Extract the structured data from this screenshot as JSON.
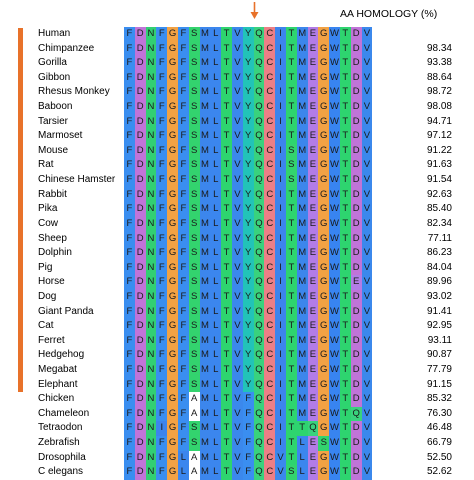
{
  "header": {
    "label": "AA HOMOLOGY  (%)"
  },
  "colors": {
    "F": "#3a8ef0",
    "D": "#c074d8",
    "N": "#32cf73",
    "G": "#f2a244",
    "S": "#33d36e",
    "M": "#3c86ec",
    "L": "#3b86ee",
    "T": "#2ed46f",
    "V": "#3b88ec",
    "Y": "#22c3b8",
    "Q": "#39d27d",
    "C": "#ec7f86",
    "I": "#3d84ec",
    "E": "#b27ce6",
    "W": "#3884f0",
    "A": "#ffffff",
    "P": "#f4e14a",
    "K": "#ff7a3c",
    "R": "#ff7a3c",
    "H": "#1fb9c0",
    "arrow": "#e8722a",
    "bar": "#e8722a"
  },
  "species": [
    {
      "name": "Human",
      "seq": "FDNFGFSMLTVYQCITMEGWTDV",
      "homology": ""
    },
    {
      "name": "Chimpanzee",
      "seq": "FDNFGFSMLTVYQCITMEGWTDV",
      "homology": "98.34"
    },
    {
      "name": "Gorilla",
      "seq": "FDNFGFSMLTVYQCITMEGWTDV",
      "homology": "93.38"
    },
    {
      "name": "Gibbon",
      "seq": "FDNFGFSMLTVYQCITMEGWTDV",
      "homology": "88.64"
    },
    {
      "name": "Rhesus Monkey",
      "seq": "FDNFGFSMLTVYQCITMEGWTDV",
      "homology": "98.72"
    },
    {
      "name": "Baboon",
      "seq": "FDNFGFSMLTVYQCITMEGWTDV",
      "homology": "98.08"
    },
    {
      "name": "Tarsier",
      "seq": "FDNFGFSMLTVYQCITMEGWTDV",
      "homology": "94.71"
    },
    {
      "name": "Marmoset",
      "seq": "FDNFGFSMLTVYQCITMEGWTDV",
      "homology": "97.12"
    },
    {
      "name": "Mouse",
      "seq": "FDNFGFSMLTVYQCISMEGWTDV",
      "homology": "91.22"
    },
    {
      "name": "Rat",
      "seq": "FDNFGFSMLTVYQCISMEGWTDV",
      "homology": "91.63"
    },
    {
      "name": "Chinese Hamster",
      "seq": "FDNFGFSMLTVYQCISMEGWTDV",
      "homology": "91.54"
    },
    {
      "name": "Rabbit",
      "seq": "FDNFGFSMLTVYQCITMEGWTDV",
      "homology": "92.63"
    },
    {
      "name": "Pika",
      "seq": "FDNFGFSMLTVYQCITMEGWTDV",
      "homology": "85.40"
    },
    {
      "name": "Cow",
      "seq": "FDNFGFSMLTVYQCITMEGWTDV",
      "homology": "82.34"
    },
    {
      "name": "Sheep",
      "seq": "FDNFGFSMLTVYQCITMEGWTDV",
      "homology": "77.11"
    },
    {
      "name": "Dolphin",
      "seq": "FDNFGFSMLTVYQCITMEGWTDV",
      "homology": "86.23"
    },
    {
      "name": "Pig",
      "seq": "FDNFGFSMLTVYQCITMEGWTDV",
      "homology": "84.04"
    },
    {
      "name": "Horse",
      "seq": "FDNFGFSMLTVYQCITMEGWTEV",
      "homology": "89.96"
    },
    {
      "name": "Dog",
      "seq": "FDNFGFSMLTVYQCITMEGWTDV",
      "homology": "93.02"
    },
    {
      "name": "Giant Panda",
      "seq": "FDNFGFSMLTVYQCITMEGWTDV",
      "homology": "91.41"
    },
    {
      "name": "Cat",
      "seq": "FDNFGFSMLTVYQCITMEGWTDV",
      "homology": "92.95"
    },
    {
      "name": "Ferret",
      "seq": "FDNFGFSMLTVYQCITMEGWTDV",
      "homology": "93.11"
    },
    {
      "name": "Hedgehog",
      "seq": "FDNFGFSMLTVYQCITMEGWTDV",
      "homology": "90.87"
    },
    {
      "name": "Megabat",
      "seq": "FDNFGFSMLTVYQCITMEGWTDV",
      "homology": "77.79"
    },
    {
      "name": "Elephant",
      "seq": "FDNFGFSMLTVYQCITMEGWTDV",
      "homology": "91.15"
    },
    {
      "name": "Chicken",
      "seq": "FDNFGFAMLTVFQCITMEGWTDV",
      "homology": "85.32"
    },
    {
      "name": "Chameleon",
      "seq": "FDNFGFAMLTVFQCITMEGWTQV",
      "homology": "76.30"
    },
    {
      "name": "Tetraodon",
      "seq": "FDNIGFSMLTVFQCITTQGWTDV",
      "homology": "46.48"
    },
    {
      "name": "Zebrafish",
      "seq": "FDNFGFSMLTVFQCITLESWTDV",
      "homology": "66.79"
    },
    {
      "name": "Drosophila",
      "seq": "FDNFGLAMLTVFQCVTLEGWTDV",
      "homology": "52.50"
    },
    {
      "name": "C elegans",
      "seq": "FDNFGLAMLTVFQCVSLEGWTDV",
      "homology": "52.62"
    }
  ]
}
